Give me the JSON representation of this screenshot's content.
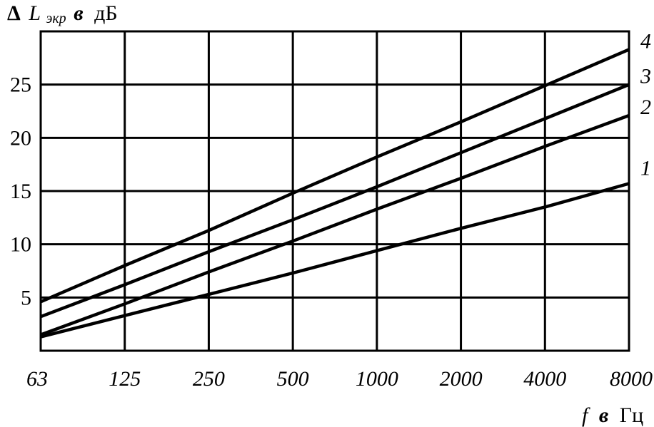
{
  "chart_data": {
    "type": "line",
    "ylabel": {
      "delta": "Δ",
      "symbol": "L",
      "subscript": "экр",
      "in_word": "в",
      "unit": "дБ"
    },
    "xlabel": {
      "symbol": "f",
      "in_word": "в",
      "unit": "Гц"
    },
    "x_categories": [
      "63",
      "125",
      "250",
      "500",
      "1000",
      "2000",
      "4000",
      "8000"
    ],
    "y_ticks": [
      "5",
      "10",
      "15",
      "20",
      "25"
    ],
    "ylim": [
      0,
      30
    ],
    "grid": true,
    "series": [
      {
        "name": "1",
        "values": [
          1.3,
          3.3,
          5.3,
          7.3,
          9.4,
          11.5,
          13.5,
          15.7
        ]
      },
      {
        "name": "2",
        "values": [
          1.5,
          4.4,
          7.4,
          10.3,
          13.3,
          16.2,
          19.2,
          22.1
        ]
      },
      {
        "name": "3",
        "values": [
          3.2,
          6.2,
          9.3,
          12.3,
          15.4,
          18.6,
          21.8,
          25.0
        ]
      },
      {
        "name": "4",
        "values": [
          4.6,
          8.0,
          11.3,
          14.8,
          18.2,
          21.5,
          24.9,
          28.3
        ]
      }
    ]
  }
}
